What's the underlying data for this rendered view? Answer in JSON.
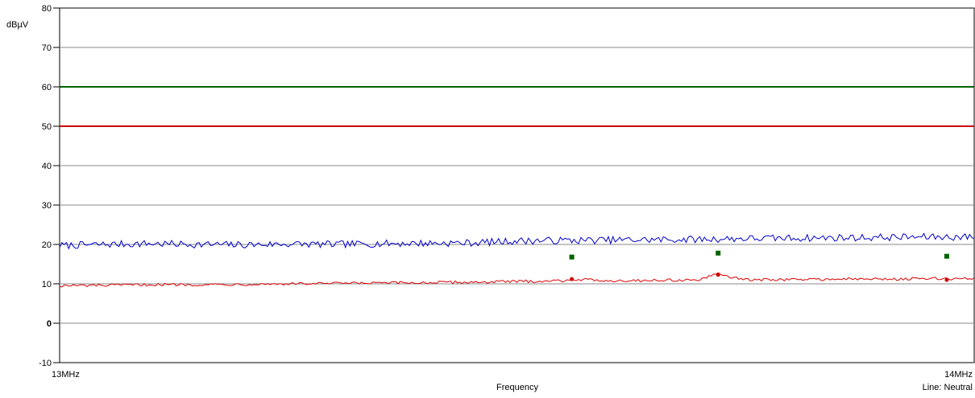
{
  "chart_data": {
    "type": "line",
    "title": "",
    "ylabel": "dBµV",
    "xlabel": "Frequency",
    "x_start_label": "13MHz",
    "x_end_label": "14MHz",
    "footer_label": "Line: Neutral",
    "x_range_mhz": [
      13,
      14
    ],
    "ylim": [
      -10,
      80
    ],
    "y_ticks": [
      80,
      70,
      60,
      50,
      40,
      30,
      20,
      10,
      0,
      -10
    ],
    "grid": "horizontal",
    "limit_lines": [
      {
        "value": 60,
        "color": "#006400"
      },
      {
        "value": 50,
        "color": "#cc0000"
      }
    ],
    "series": [
      {
        "color": "#0000cc",
        "x": [
          13.0,
          13.05,
          13.1,
          13.15,
          13.2,
          13.25,
          13.3,
          13.35,
          13.4,
          13.45,
          13.5,
          13.55,
          13.6,
          13.65,
          13.7,
          13.75,
          13.8,
          13.85,
          13.9,
          13.95,
          14.0
        ],
        "y": [
          19.7,
          20.0,
          20.2,
          20.0,
          19.9,
          20.1,
          20.0,
          20.2,
          20.3,
          20.4,
          20.9,
          21.0,
          21.1,
          21.2,
          21.3,
          21.5,
          21.6,
          21.7,
          21.8,
          21.9,
          21.9
        ]
      },
      {
        "color": "#dd0000",
        "x": [
          13.0,
          13.05,
          13.1,
          13.15,
          13.2,
          13.25,
          13.3,
          13.35,
          13.4,
          13.45,
          13.5,
          13.55,
          13.56,
          13.6,
          13.65,
          13.7,
          13.72,
          13.75,
          13.8,
          13.85,
          13.9,
          13.95,
          14.0
        ],
        "y": [
          9.5,
          9.6,
          9.8,
          9.8,
          9.9,
          10.0,
          10.1,
          10.2,
          10.3,
          10.4,
          10.6,
          10.8,
          11.2,
          10.8,
          10.9,
          11.0,
          12.5,
          11.0,
          11.1,
          11.2,
          11.2,
          11.3,
          11.3
        ]
      }
    ],
    "markers_green": [
      {
        "x": 13.56,
        "y": 16.8
      },
      {
        "x": 13.72,
        "y": 17.8
      },
      {
        "x": 13.97,
        "y": 17.0
      }
    ],
    "markers_red": [
      {
        "x": 13.56,
        "y": 11.2
      },
      {
        "x": 13.72,
        "y": 12.3
      },
      {
        "x": 13.97,
        "y": 11.0
      }
    ]
  }
}
